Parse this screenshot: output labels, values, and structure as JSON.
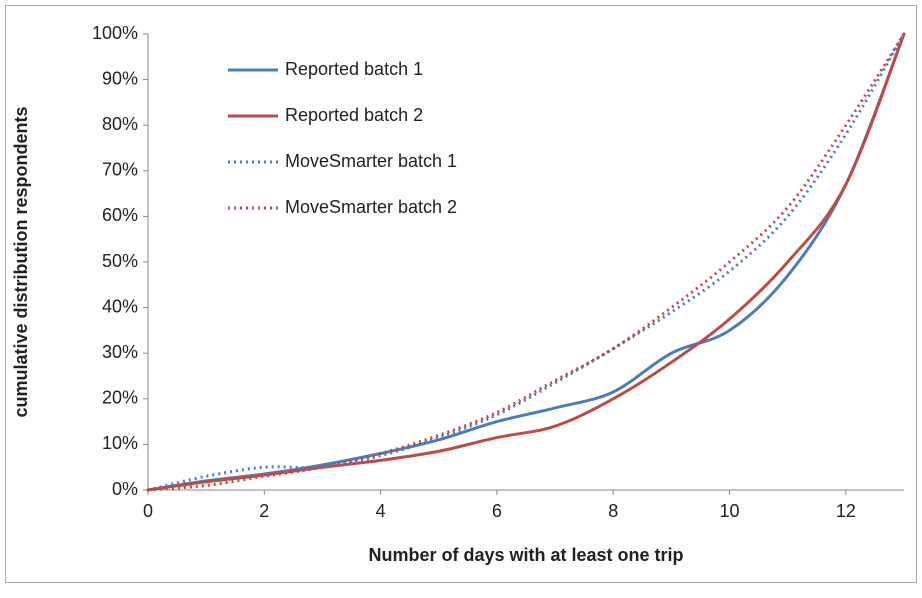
{
  "chart_data": {
    "type": "line",
    "x_label": "Number of days with at least one trip",
    "y_label": "cumulative distribution respondents",
    "x": [
      0,
      1,
      2,
      3,
      4,
      5,
      6,
      7,
      8,
      9,
      10,
      11,
      12,
      13
    ],
    "series": [
      {
        "name": "Reported batch 1",
        "color": "#4a7ebb",
        "dash": "solid",
        "values": [
          0,
          2,
          3.5,
          5.5,
          8,
          11,
          15,
          18,
          21.5,
          30,
          35,
          47,
          67,
          100
        ]
      },
      {
        "name": "Reported batch 2",
        "color": "#be4b48",
        "dash": "solid",
        "values": [
          0,
          1.8,
          3.3,
          5,
          6.5,
          8.5,
          11.5,
          14,
          20,
          28,
          37.5,
          50,
          67,
          100
        ]
      },
      {
        "name": "MoveSmarter batch 1",
        "color": "#4a7ebb",
        "dash": "dotted",
        "values": [
          0,
          3,
          5,
          5,
          7.5,
          11.5,
          16.5,
          23.5,
          31,
          39,
          48,
          60,
          78,
          100
        ]
      },
      {
        "name": "MoveSmarter batch 2",
        "color": "#be4b48",
        "dash": "dotted",
        "values": [
          0,
          1,
          3,
          5,
          8,
          12,
          17,
          24,
          31,
          40,
          50,
          62,
          80,
          100
        ]
      }
    ],
    "xlim": [
      0,
      13
    ],
    "xticks": [
      0,
      2,
      4,
      6,
      8,
      10,
      12
    ],
    "ylim": [
      0,
      100
    ],
    "yticks": [
      {
        "value": 0,
        "label": "0%"
      },
      {
        "value": 10,
        "label": "10%"
      },
      {
        "value": 20,
        "label": "20%"
      },
      {
        "value": 30,
        "label": "30%"
      },
      {
        "value": 40,
        "label": "40%"
      },
      {
        "value": 50,
        "label": "50%"
      },
      {
        "value": 60,
        "label": "60%"
      },
      {
        "value": 70,
        "label": "70%"
      },
      {
        "value": 80,
        "label": "80%"
      },
      {
        "value": 90,
        "label": "90%"
      },
      {
        "value": 100,
        "label": "100%"
      }
    ],
    "legend": "upper left",
    "grid": false
  }
}
